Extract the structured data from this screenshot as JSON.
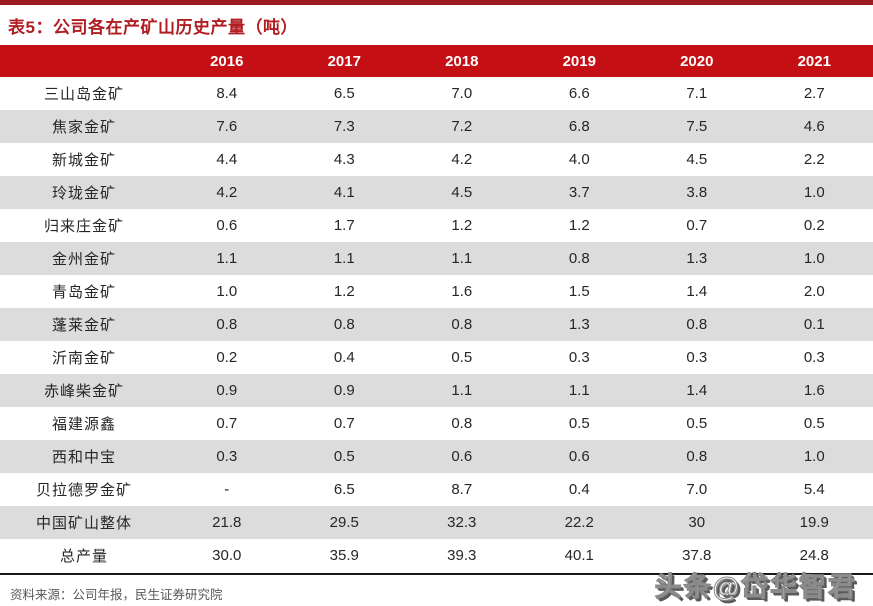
{
  "title": "表5：公司各在产矿山历史产量（吨）",
  "colors": {
    "top_bar_red": "#9b1b1e",
    "header_red": "#c40f14",
    "title_red": "#b01e23",
    "alt_row_gray": "#dcdcdc",
    "header_text": "#ffffff"
  },
  "table": {
    "years": [
      "2016",
      "2017",
      "2018",
      "2019",
      "2020",
      "2021"
    ],
    "rows": [
      {
        "name": "三山岛金矿",
        "values": [
          "8.4",
          "6.5",
          "7.0",
          "6.6",
          "7.1",
          "2.7"
        ]
      },
      {
        "name": "焦家金矿",
        "values": [
          "7.6",
          "7.3",
          "7.2",
          "6.8",
          "7.5",
          "4.6"
        ]
      },
      {
        "name": "新城金矿",
        "values": [
          "4.4",
          "4.3",
          "4.2",
          "4.0",
          "4.5",
          "2.2"
        ]
      },
      {
        "name": "玲珑金矿",
        "values": [
          "4.2",
          "4.1",
          "4.5",
          "3.7",
          "3.8",
          "1.0"
        ]
      },
      {
        "name": "归来庄金矿",
        "values": [
          "0.6",
          "1.7",
          "1.2",
          "1.2",
          "0.7",
          "0.2"
        ]
      },
      {
        "name": "金州金矿",
        "values": [
          "1.1",
          "1.1",
          "1.1",
          "0.8",
          "1.3",
          "1.0"
        ]
      },
      {
        "name": "青岛金矿",
        "values": [
          "1.0",
          "1.2",
          "1.6",
          "1.5",
          "1.4",
          "2.0"
        ]
      },
      {
        "name": "蓬莱金矿",
        "values": [
          "0.8",
          "0.8",
          "0.8",
          "1.3",
          "0.8",
          "0.1"
        ]
      },
      {
        "name": "沂南金矿",
        "values": [
          "0.2",
          "0.4",
          "0.5",
          "0.3",
          "0.3",
          "0.3"
        ]
      },
      {
        "name": "赤峰柴金矿",
        "values": [
          "0.9",
          "0.9",
          "1.1",
          "1.1",
          "1.4",
          "1.6"
        ]
      },
      {
        "name": "福建源鑫",
        "values": [
          "0.7",
          "0.7",
          "0.8",
          "0.5",
          "0.5",
          "0.5"
        ]
      },
      {
        "name": "西和中宝",
        "values": [
          "0.3",
          "0.5",
          "0.6",
          "0.6",
          "0.8",
          "1.0"
        ]
      },
      {
        "name": "贝拉德罗金矿",
        "values": [
          "-",
          "6.5",
          "8.7",
          "0.4",
          "7.0",
          "5.4"
        ]
      },
      {
        "name": "中国矿山整体",
        "values": [
          "21.8",
          "29.5",
          "32.3",
          "22.2",
          "30",
          "19.9"
        ]
      },
      {
        "name": "总产量",
        "values": [
          "30.0",
          "35.9",
          "39.3",
          "40.1",
          "37.8",
          "24.8"
        ]
      }
    ]
  },
  "footer": {
    "source": "资料来源：公司年报，民生证券研究院"
  },
  "watermark": "头条@岱华智君"
}
